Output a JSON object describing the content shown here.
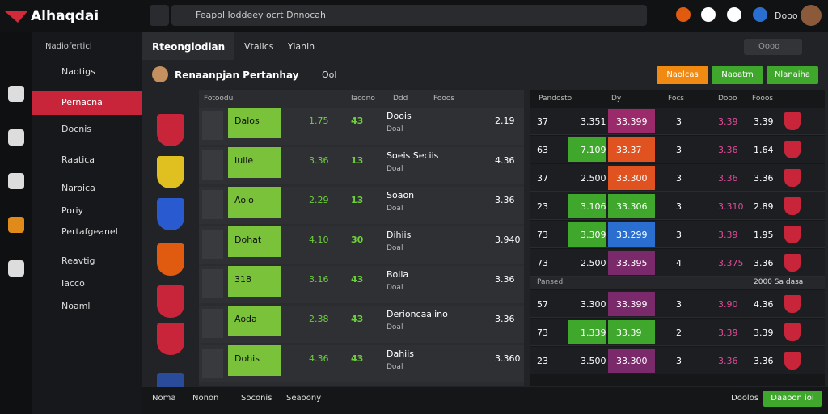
{
  "header": {
    "logo": "Alhaqdai",
    "search": "Feapol Ioddeey ocrt Dnnocah",
    "user": "Dooo"
  },
  "sidebar": {
    "section": "Nadiofertici",
    "items": [
      "Naotigs",
      "Pernacna",
      "Docnis",
      "Raatica",
      "Naroica",
      "Poriy",
      "Pertafgeanel",
      "Reavtig",
      "Iacco",
      "Noaml"
    ],
    "active": 1
  },
  "tabs": [
    "Rteongiodlan",
    "Vtaiics",
    "Yianin"
  ],
  "subheader": {
    "title": "Renaanpjan Pertanhay",
    "extra": "Ool",
    "search": "Oooo"
  },
  "buttons": [
    {
      "label": "Naolcas",
      "color": "#f08a12"
    },
    {
      "label": "Naoatm",
      "color": "#3fa82c"
    },
    {
      "label": "Nlanaiha",
      "color": "#3fa82c"
    }
  ],
  "left_table": {
    "headers": [
      "Fotoodu",
      "Iacono",
      "Ddd",
      "Fooos"
    ],
    "rows": [
      [
        "Dalos",
        "1.75",
        "43",
        "Doois",
        "Doal",
        "2.19"
      ],
      [
        "Iulie",
        "3.36",
        "13",
        "Soeis Seciis",
        "Doal",
        "4.36"
      ],
      [
        "Aoio",
        "2.29",
        "13",
        "Soaon",
        "Doal",
        "3.36"
      ],
      [
        "Dohat",
        "4.10",
        "30",
        "Dihiis",
        "Doal",
        "3.940"
      ],
      [
        "318",
        "3.16",
        "43",
        "Boiia",
        "Doal",
        "3.36"
      ],
      [
        "Aoda",
        "2.38",
        "43",
        "Derioncaalino",
        "Doal",
        "3.36"
      ],
      [
        "Dohis",
        "4.36",
        "43",
        "Dahiis",
        "Doal",
        "3.360"
      ]
    ]
  },
  "right_table": {
    "headers": [
      "Pandosto",
      "Dy",
      "Focs",
      "Dooo",
      "Fooos"
    ],
    "rows": [
      {
        "n": "37",
        "a": "3.351",
        "a_color": null,
        "b": "33.399",
        "b_color": "#9b2a6a",
        "c": "3",
        "d": "3.39",
        "e": "3.39"
      },
      {
        "n": "63",
        "a": "7.109",
        "a_color": "#3fa82c",
        "b": "33.37",
        "b_color": "#e0521f",
        "c": "3",
        "d": "3.36",
        "e": "1.64"
      },
      {
        "n": "37",
        "a": "2.500",
        "a_color": null,
        "b": "33.300",
        "b_color": "#e0521f",
        "c": "3",
        "d": "3.36",
        "e": "3.36"
      },
      {
        "n": "23",
        "a": "3.106",
        "a_color": "#3fa82c",
        "b": "33.306",
        "b_color": "#3fa82c",
        "c": "3",
        "d": "3.310",
        "e": "2.89"
      },
      {
        "n": "73",
        "a": "3.309",
        "a_color": "#3fa82c",
        "b": "33.299",
        "b_color": "#2a6fd0",
        "c": "3",
        "d": "3.39",
        "e": "1.95"
      },
      {
        "n": "73",
        "a": "2.500",
        "a_color": null,
        "b": "33.395",
        "b_color": "#7a2a6a",
        "c": "4",
        "d": "3.375",
        "e": "3.36"
      },
      {
        "sep": "Pansed",
        "sep_right": "2000 Sa dasa"
      },
      {
        "n": "57",
        "a": "3.300",
        "a_color": null,
        "b": "33.399",
        "b_color": "#7a2a6a",
        "c": "3",
        "d": "3.90",
        "e": "4.36"
      },
      {
        "n": "73",
        "a": "1.339",
        "a_color": "#3fa82c",
        "b": "33.39",
        "b_color": "#3fa82c",
        "c": "2",
        "d": "3.39",
        "e": "3.39"
      },
      {
        "n": "23",
        "a": "3.500",
        "a_color": null,
        "b": "33.300",
        "b_color": "#7a2a6a",
        "c": "3",
        "d": "3.36",
        "e": "3.36"
      }
    ]
  },
  "footer": {
    "items": [
      "Noma",
      "Nonon",
      "Soconis",
      "Seaoony"
    ],
    "right": "Doolos",
    "button": "Daaoon ioi"
  }
}
